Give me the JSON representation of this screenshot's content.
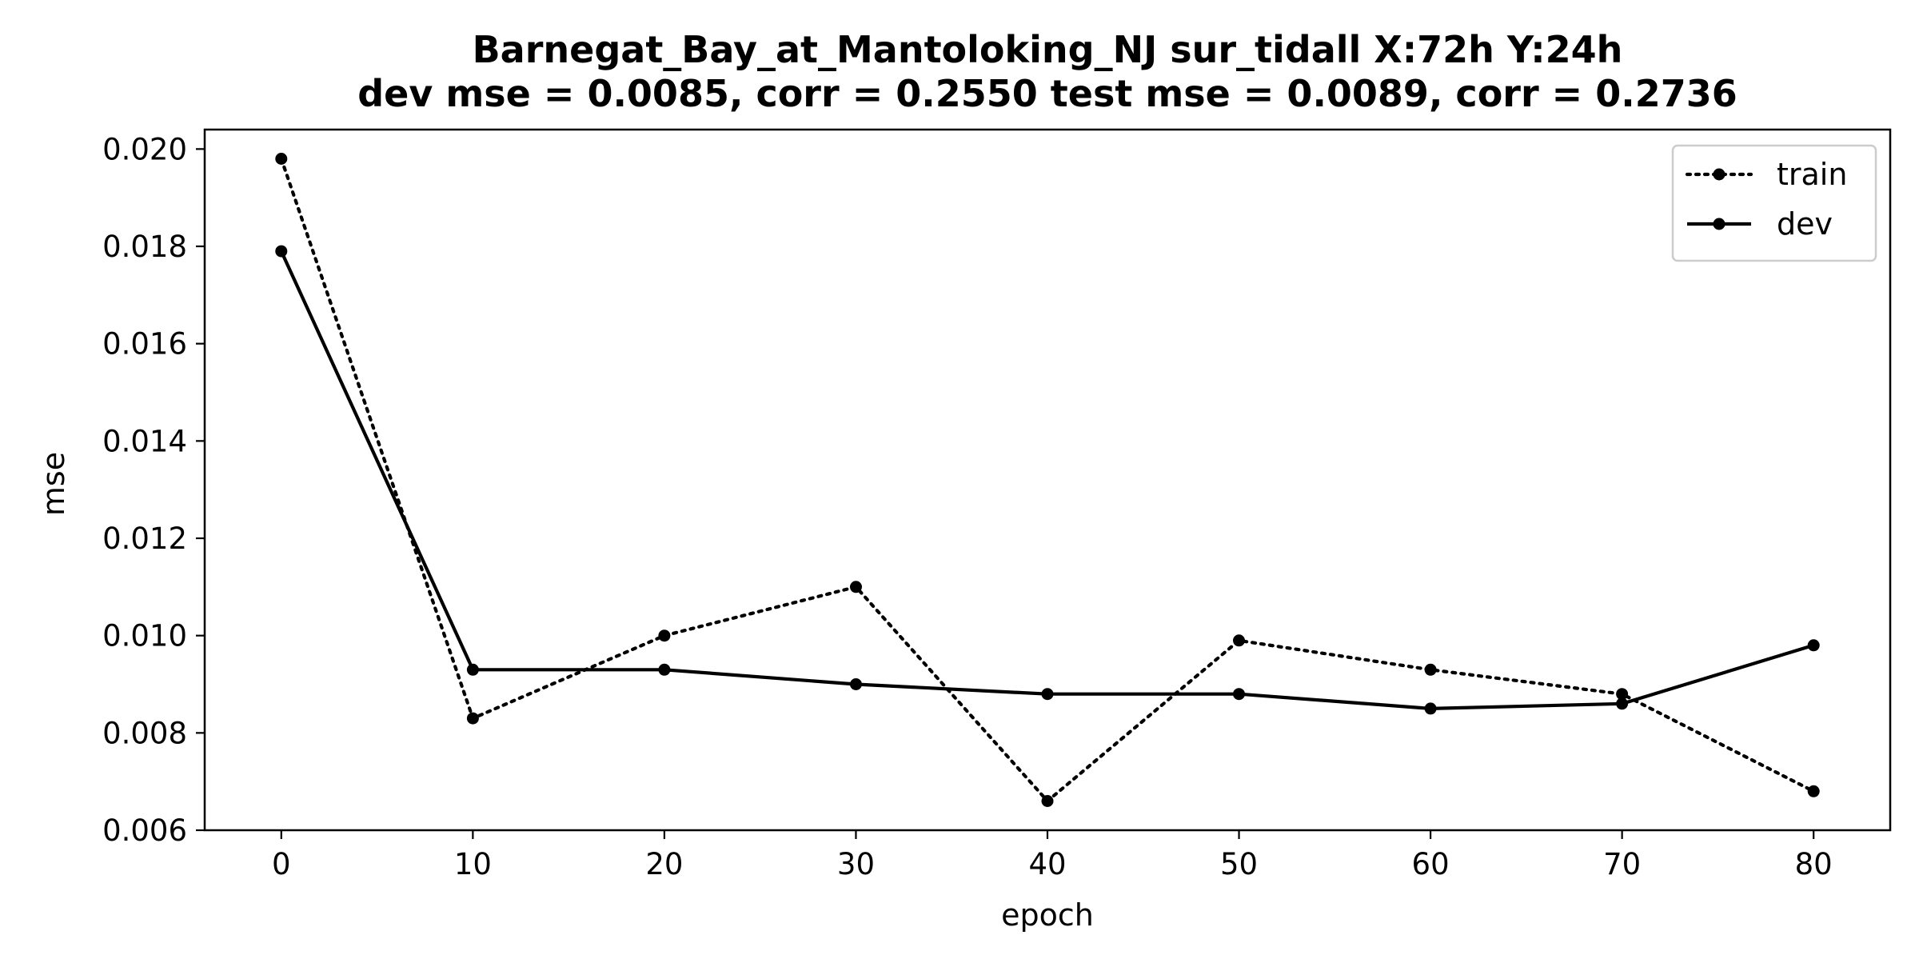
{
  "chart_data": {
    "type": "line",
    "title_line1": "Barnegat_Bay_at_Mantoloking_NJ   sur_tidall   X:72h   Y:24h",
    "title_line2": "dev mse = 0.0085, corr = 0.2550   test mse = 0.0089, corr = 0.2736",
    "xlabel": "epoch",
    "ylabel": "mse",
    "xlim": [
      -4,
      84
    ],
    "ylim": [
      0.006,
      0.0204
    ],
    "x_ticks": [
      0,
      10,
      20,
      30,
      40,
      50,
      60,
      70,
      80
    ],
    "x_tick_labels": [
      "0",
      "10",
      "20",
      "30",
      "40",
      "50",
      "60",
      "70",
      "80"
    ],
    "y_ticks": [
      0.006,
      0.008,
      0.01,
      0.012,
      0.014,
      0.016,
      0.018,
      0.02
    ],
    "y_tick_labels": [
      "0.006",
      "0.008",
      "0.010",
      "0.012",
      "0.014",
      "0.016",
      "0.018",
      "0.020"
    ],
    "grid": false,
    "legend_position": "top-right",
    "x": [
      0,
      10,
      20,
      30,
      40,
      50,
      60,
      70,
      80
    ],
    "series": [
      {
        "name": "train",
        "style": "dotted",
        "color": "#000000",
        "values": [
          0.0198,
          0.0083,
          0.01,
          0.011,
          0.0066,
          0.0099,
          0.0093,
          0.0088,
          0.0068
        ]
      },
      {
        "name": "dev",
        "style": "solid",
        "color": "#000000",
        "values": [
          0.0179,
          0.0093,
          0.0093,
          0.009,
          0.0088,
          0.0088,
          0.0085,
          0.0086,
          0.0098
        ]
      }
    ]
  }
}
